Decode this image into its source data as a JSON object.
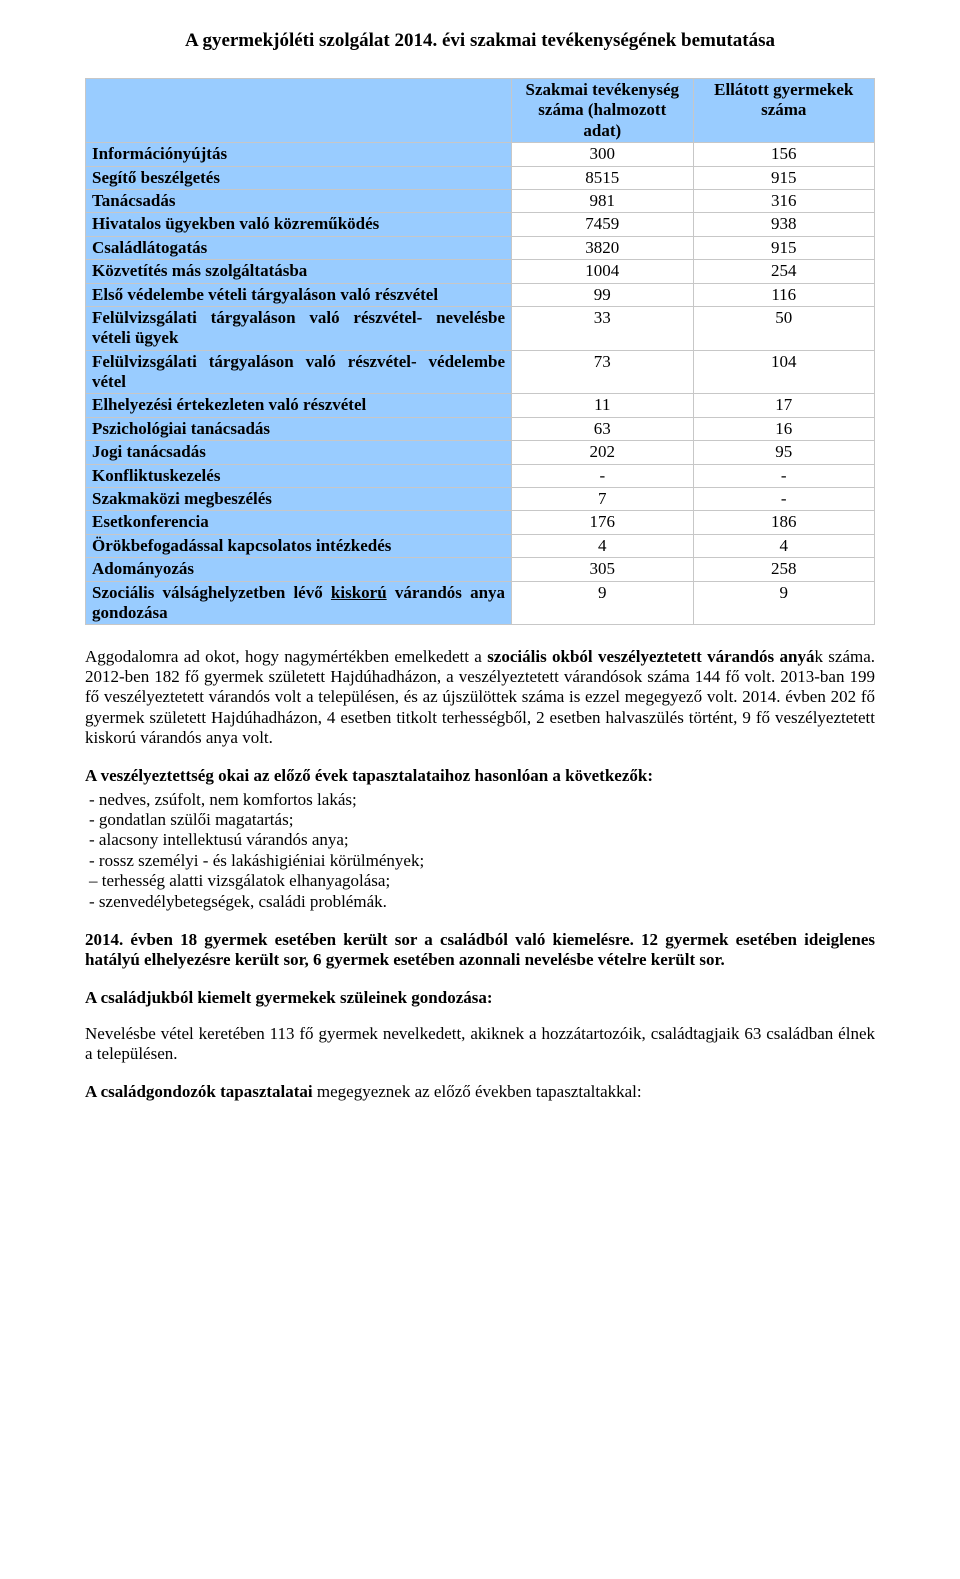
{
  "title": "A gyermekjóléti szolgálat 2014. évi szakmai tevékenységének bemutatása",
  "table": {
    "header_col1": "Szakmai tevékenység száma (halmozott adat)",
    "header_col2": "Ellátott gyermekek száma",
    "rows": [
      {
        "label": "Információnyújtás",
        "v1": "300",
        "v2": "156"
      },
      {
        "label": "Segítő beszélgetés",
        "v1": "8515",
        "v2": "915"
      },
      {
        "label": "Tanácsadás",
        "v1": "981",
        "v2": "316"
      },
      {
        "label": "Hivatalos ügyekben való közreműködés",
        "v1": "7459",
        "v2": "938"
      },
      {
        "label": "Családlátogatás",
        "v1": "3820",
        "v2": "915"
      },
      {
        "label": "Közvetítés más szolgáltatásba",
        "v1": "1004",
        "v2": "254"
      },
      {
        "label": "Első védelembe vételi tárgyaláson való részvétel",
        "v1": "99",
        "v2": "116"
      },
      {
        "label": "Felülvizsgálati tárgyaláson való részvétel- nevelésbe vételi ügyek",
        "v1": "33",
        "v2": "50"
      },
      {
        "label": "Felülvizsgálati tárgyaláson való részvétel- védelembe vétel",
        "v1": "73",
        "v2": "104"
      },
      {
        "label": "Elhelyezési értekezleten való részvétel",
        "v1": "11",
        "v2": "17"
      },
      {
        "label": "Pszichológiai tanácsadás",
        "v1": "63",
        "v2": "16"
      },
      {
        "label": "Jogi tanácsadás",
        "v1": "202",
        "v2": "95"
      },
      {
        "label": "Konfliktuskezelés",
        "v1": "-",
        "v2": "-"
      },
      {
        "label": "Szakmaközi megbeszélés",
        "v1": "7",
        "v2": "-"
      },
      {
        "label": "Esetkonferencia",
        "v1": "176",
        "v2": "186"
      },
      {
        "label": "Örökbefogadással kapcsolatos intézkedés",
        "v1": "4",
        "v2": "4"
      },
      {
        "label": "Adományozás",
        "v1": "305",
        "v2": "258"
      },
      {
        "label_pre": "Szociális válsághelyzetben lévő ",
        "label_u": "kiskorú",
        "label_post": " várandós anya gondozása",
        "v1": "9",
        "v2": "9"
      }
    ]
  },
  "para1_a": "Aggodalomra ad okot, hogy nagymértékben emelkedett a ",
  "para1_bold": "szociális okból veszélyeztetett várandós anyá",
  "para1_b": "k száma. 2012-ben 182 fő gyermek született Hajdúhadházon, a veszélyeztetett várandósok száma 144 fő volt. 2013-ban 199 fő veszélyeztetett várandós volt a településen, és az újszülöttek száma is ezzel megegyező volt. 2014. évben 202 fő gyermek született Hajdúhadházon, 4 esetben titkolt terhességből, 2 esetben halvaszülés történt, 9 fő veszélyeztetett kiskorú várandós anya volt.",
  "causes_lead": "A veszélyeztettség okai  az előző évek tapasztalataihoz hasonlóan a következők:",
  "causes": [
    "nedves, zsúfolt, nem komfortos lakás;",
    "gondatlan szülői magatartás;",
    "alacsony intellektusú várandós anya;",
    "rossz személyi - és lakáshigiéniai körülmények;",
    "terhesség alatti vizsgálatok elhanyagolása;",
    "szenvedélybetegségek, családi problémák."
  ],
  "sect_bold": "2014. évben 18 gyermek esetében került sor a családból való kiemelésre. 12 gyermek esetében ideiglenes hatályú elhelyezésre került sor, 6 gyermek esetében azonnali nevelésbe vételre került sor.",
  "subhead": "A családjukból kiemelt gyermekek szüleinek gondozása:",
  "para2": "Nevelésbe vétel keretében 113 fő gyermek nevelkedett, akiknek a hozzátartozóik, családtagjaik 63 családban élnek a településen.",
  "last_bold": "A családgondozók tapasztalatai ",
  "last_rest": "megegyeznek az előző években tapasztaltakkal:"
}
